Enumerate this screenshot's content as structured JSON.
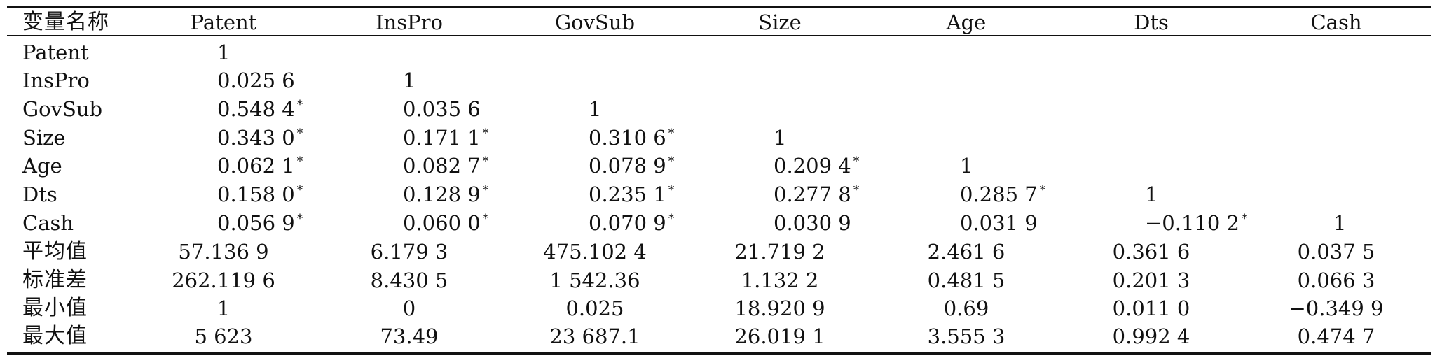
{
  "table": {
    "headers": [
      "变量名称",
      "Patent",
      "InsPro",
      "GovSub",
      "Size",
      "Age",
      "Dts",
      "Cash"
    ],
    "rows": [
      {
        "label": "Patent",
        "cells": [
          [
            "1",
            ""
          ],
          [
            "",
            ""
          ],
          [
            "",
            ""
          ],
          [
            "",
            ""
          ],
          [
            "",
            ""
          ],
          [
            "",
            ""
          ],
          [
            "",
            ""
          ]
        ]
      },
      {
        "label": "InsPro",
        "cells": [
          [
            "0.025 6",
            ""
          ],
          [
            "1",
            ""
          ],
          [
            "",
            ""
          ],
          [
            "",
            ""
          ],
          [
            "",
            ""
          ],
          [
            "",
            ""
          ],
          [
            "",
            ""
          ]
        ]
      },
      {
        "label": "GovSub",
        "cells": [
          [
            "0.548 4",
            "*"
          ],
          [
            "0.035 6",
            ""
          ],
          [
            "1",
            ""
          ],
          [
            "",
            ""
          ],
          [
            "",
            ""
          ],
          [
            "",
            ""
          ],
          [
            "",
            ""
          ]
        ]
      },
      {
        "label": "Size",
        "cells": [
          [
            "0.343 0",
            "*"
          ],
          [
            "0.171 1",
            "*"
          ],
          [
            "0.310 6",
            "*"
          ],
          [
            "1",
            ""
          ],
          [
            "",
            ""
          ],
          [
            "",
            ""
          ],
          [
            "",
            ""
          ]
        ]
      },
      {
        "label": "Age",
        "cells": [
          [
            "0.062 1",
            "*"
          ],
          [
            "0.082 7",
            "*"
          ],
          [
            "0.078 9",
            "*"
          ],
          [
            "0.209 4",
            "*"
          ],
          [
            "1",
            ""
          ],
          [
            "",
            ""
          ],
          [
            "",
            ""
          ]
        ]
      },
      {
        "label": "Dts",
        "cells": [
          [
            "0.158 0",
            "*"
          ],
          [
            "0.128 9",
            "*"
          ],
          [
            "0.235 1",
            "*"
          ],
          [
            "0.277 8",
            "*"
          ],
          [
            "0.285 7",
            "*"
          ],
          [
            "1",
            ""
          ],
          [
            "",
            ""
          ]
        ]
      },
      {
        "label": "Cash",
        "cells": [
          [
            "0.056 9",
            "*"
          ],
          [
            "0.060 0",
            "*"
          ],
          [
            "0.070 9",
            "*"
          ],
          [
            "0.030 9",
            ""
          ],
          [
            "0.031 9",
            ""
          ],
          [
            "−0.110 2",
            "*"
          ],
          [
            "1",
            ""
          ]
        ]
      },
      {
        "label": "平均值",
        "cells": [
          [
            "57.136 9",
            ""
          ],
          [
            "6.179 3",
            ""
          ],
          [
            "475.102 4",
            ""
          ],
          [
            "21.719 2",
            ""
          ],
          [
            "2.461 6",
            ""
          ],
          [
            "0.361 6",
            ""
          ],
          [
            "0.037 5",
            ""
          ]
        ]
      },
      {
        "label": "标准差",
        "cells": [
          [
            "262.119 6",
            ""
          ],
          [
            "8.430 5",
            ""
          ],
          [
            "1 542.36",
            ""
          ],
          [
            "1.132 2",
            ""
          ],
          [
            "0.481 5",
            ""
          ],
          [
            "0.201 3",
            ""
          ],
          [
            "0.066 3",
            ""
          ]
        ]
      },
      {
        "label": "最小值",
        "cells": [
          [
            "1",
            ""
          ],
          [
            "0",
            ""
          ],
          [
            "0.025",
            ""
          ],
          [
            "18.920 9",
            ""
          ],
          [
            "0.69",
            ""
          ],
          [
            "0.011 0",
            ""
          ],
          [
            "−0.349 9",
            ""
          ]
        ]
      },
      {
        "label": "最大值",
        "cells": [
          [
            "5 623",
            ""
          ],
          [
            "73.49",
            ""
          ],
          [
            "23 687.1",
            ""
          ],
          [
            "26.019 1",
            ""
          ],
          [
            "3.555 3",
            ""
          ],
          [
            "0.992 4",
            ""
          ],
          [
            "0.474 7",
            ""
          ]
        ]
      }
    ]
  }
}
